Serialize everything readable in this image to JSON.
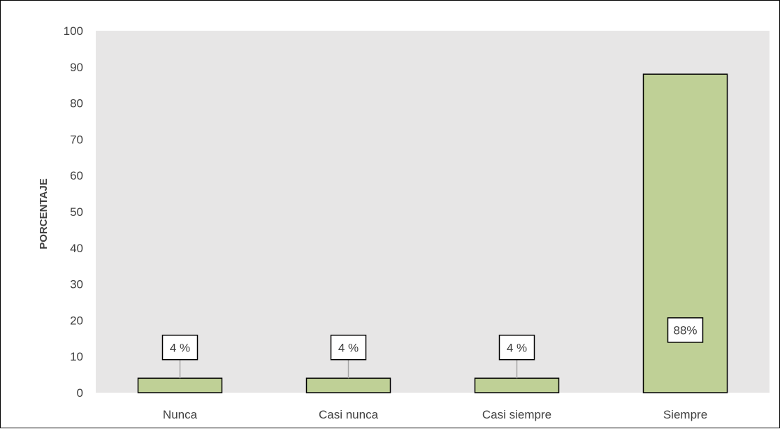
{
  "chart_data": {
    "type": "bar",
    "title": "",
    "xlabel": "",
    "ylabel": "PORCENTAJE",
    "categories": [
      "Nunca",
      "Casi nunca",
      "Casi siempre",
      "Siempre"
    ],
    "values": [
      4,
      4,
      4,
      88
    ],
    "data_labels": [
      "4 %",
      "4 %",
      "4 %",
      "88%"
    ],
    "ylim": [
      0,
      100
    ],
    "yticks": [
      0,
      10,
      20,
      30,
      40,
      50,
      60,
      70,
      80,
      90,
      100
    ],
    "grid": false,
    "legend": "none",
    "colors": {
      "plot_background": "#e7e6e6",
      "bar_fill": "#bfd096",
      "bar_stroke": "#000000",
      "text": "#404040",
      "label_box_fill": "#ffffff",
      "label_box_stroke": "#000000",
      "leader_line": "#a6a6a6"
    }
  }
}
